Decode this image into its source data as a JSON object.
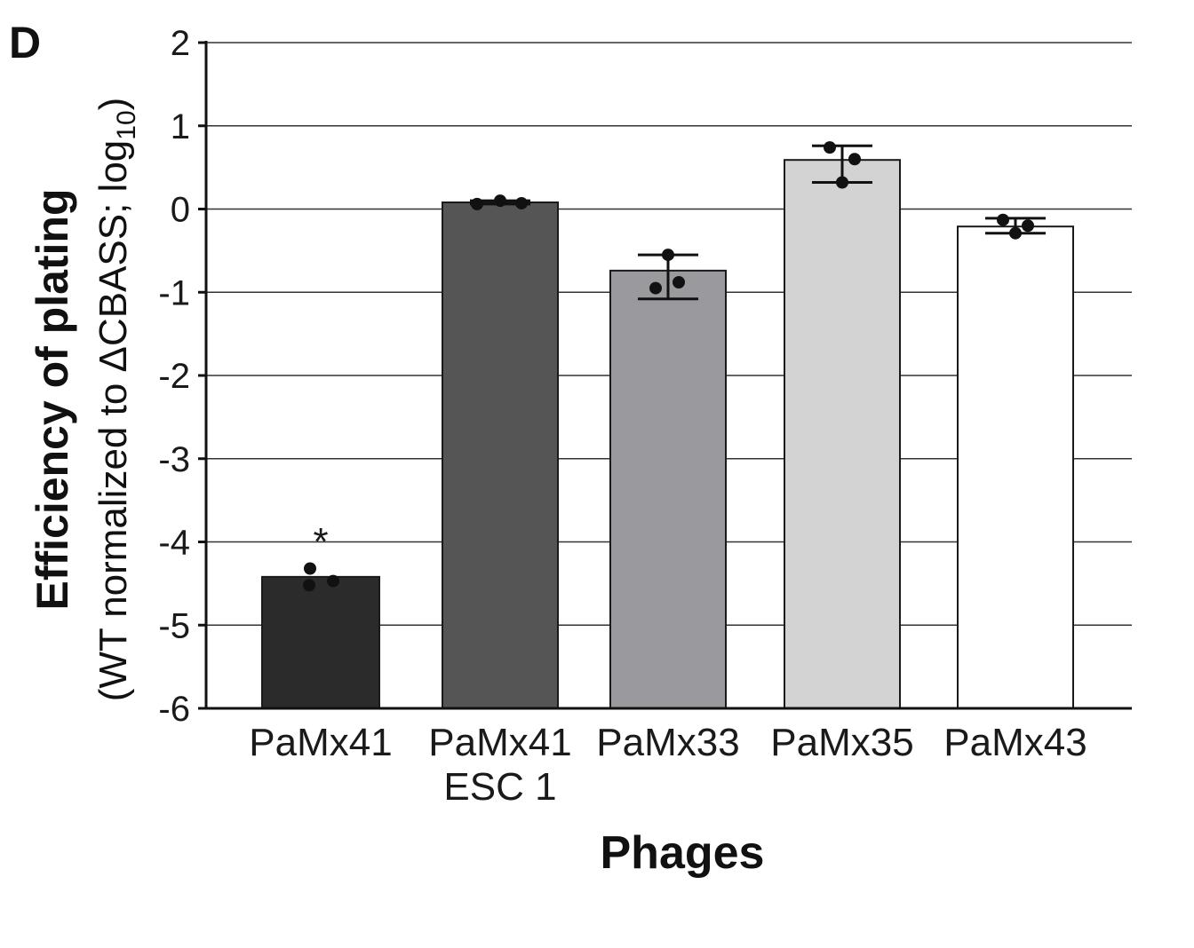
{
  "panel_label": "D",
  "chart_data": {
    "type": "bar",
    "categories": [
      [
        "PaMx41"
      ],
      [
        "PaMx41",
        "ESC 1"
      ],
      [
        "PaMx33"
      ],
      [
        "PaMx35"
      ],
      [
        "PaMx43"
      ]
    ],
    "values": [
      -4.42,
      0.08,
      -0.74,
      0.59,
      -0.21
    ],
    "error": [
      null,
      [
        0.06,
        0.1
      ],
      [
        -1.08,
        -0.55
      ],
      [
        0.32,
        0.76
      ],
      [
        -0.29,
        -0.11
      ]
    ],
    "points": [
      [
        -4.32,
        -4.52,
        -4.47
      ],
      [
        0.06,
        0.1,
        0.07
      ],
      [
        -0.55,
        -0.95,
        -0.88
      ],
      [
        0.74,
        0.6,
        0.32
      ],
      [
        -0.13,
        -0.2,
        -0.29
      ]
    ],
    "bar_colors": [
      "#2b2b2b",
      "#555555",
      "#9a9a9e",
      "#d3d3d3",
      "#ffffff"
    ],
    "annotation": {
      "category_index": 0,
      "text": "*",
      "y": -3.9
    },
    "xlabel": "Phages",
    "ylabel_line1": "Efficiency of plating",
    "ylabel_line2_pre": "(WT normalized to ΔCBASS; log",
    "ylabel_line2_sub": "10",
    "ylabel_line2_post": ")",
    "ylim": [
      -6,
      2
    ],
    "yticks": [
      2,
      1,
      0,
      -1,
      -2,
      -3,
      -4,
      -5,
      -6
    ],
    "grid": true
  }
}
